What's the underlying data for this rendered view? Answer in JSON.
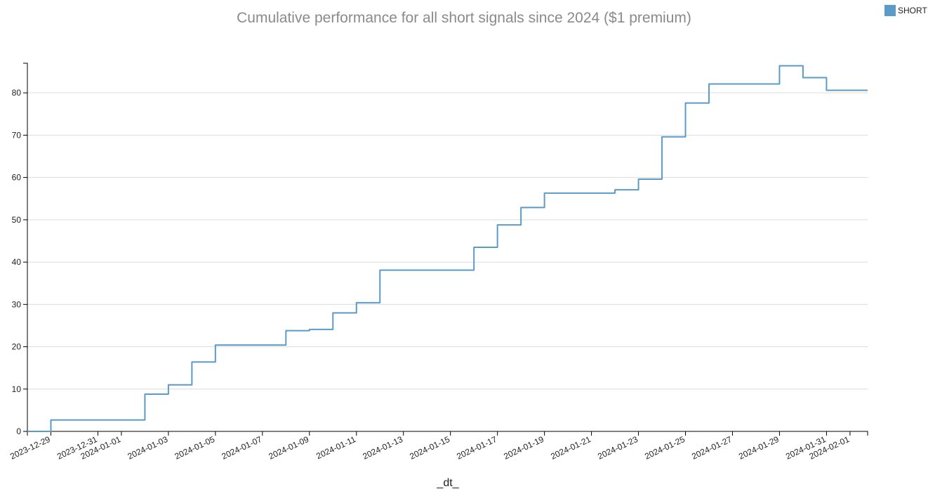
{
  "chart_data": {
    "type": "line",
    "title": "Cumulative performance for all short signals since 2024 ($1 premium)",
    "xlabel": "_dt_",
    "ylabel": "",
    "x_range": [
      "2023-12-28",
      "2024-02-01T18:00"
    ],
    "ylim": [
      0,
      87
    ],
    "y_ticks": [
      0,
      10,
      20,
      30,
      40,
      50,
      60,
      70,
      80
    ],
    "x_ticks": [
      "2023-12-29",
      "2023-12-31",
      "2024-01-01",
      "2024-01-03",
      "2024-01-05",
      "2024-01-07",
      "2024-01-09",
      "2024-01-11",
      "2024-01-13",
      "2024-01-15",
      "2024-01-17",
      "2024-01-19",
      "2024-01-21",
      "2024-01-23",
      "2024-01-25",
      "2024-01-27",
      "2024-01-29",
      "2024-01-31",
      "2024-02-01"
    ],
    "grid": "horizontal",
    "legend_position": "top-right",
    "series": [
      {
        "name": "SHORT",
        "color": "#5b9bc8",
        "shape": "step",
        "points": [
          [
            "2023-12-28T00:00",
            0
          ],
          [
            "2023-12-29T00:00",
            0
          ],
          [
            "2023-12-29T00:00",
            2.7
          ],
          [
            "2024-01-02T00:00",
            2.7
          ],
          [
            "2024-01-02T00:00",
            8.8
          ],
          [
            "2024-01-03T00:00",
            8.8
          ],
          [
            "2024-01-03T00:00",
            11
          ],
          [
            "2024-01-04T00:00",
            11
          ],
          [
            "2024-01-04T00:00",
            16.4
          ],
          [
            "2024-01-05T00:00",
            16.4
          ],
          [
            "2024-01-05T00:00",
            20.4
          ],
          [
            "2024-01-08T00:00",
            20.4
          ],
          [
            "2024-01-08T00:00",
            23.8
          ],
          [
            "2024-01-09T00:00",
            23.8
          ],
          [
            "2024-01-09T00:00",
            24.1
          ],
          [
            "2024-01-10T00:00",
            24.1
          ],
          [
            "2024-01-10T00:00",
            28
          ],
          [
            "2024-01-11T00:00",
            28
          ],
          [
            "2024-01-11T00:00",
            30.4
          ],
          [
            "2024-01-12T00:00",
            30.4
          ],
          [
            "2024-01-12T00:00",
            38.1
          ],
          [
            "2024-01-16T00:00",
            38.1
          ],
          [
            "2024-01-16T00:00",
            43.5
          ],
          [
            "2024-01-17T00:00",
            43.5
          ],
          [
            "2024-01-17T00:00",
            48.8
          ],
          [
            "2024-01-18T00:00",
            48.8
          ],
          [
            "2024-01-18T00:00",
            52.9
          ],
          [
            "2024-01-19T00:00",
            52.9
          ],
          [
            "2024-01-19T00:00",
            56.3
          ],
          [
            "2024-01-22T00:00",
            56.3
          ],
          [
            "2024-01-22T00:00",
            57.1
          ],
          [
            "2024-01-23T00:00",
            57.1
          ],
          [
            "2024-01-23T00:00",
            59.6
          ],
          [
            "2024-01-24T00:00",
            59.6
          ],
          [
            "2024-01-24T00:00",
            69.6
          ],
          [
            "2024-01-25T00:00",
            69.6
          ],
          [
            "2024-01-25T00:00",
            77.6
          ],
          [
            "2024-01-26T00:00",
            77.6
          ],
          [
            "2024-01-26T00:00",
            82.1
          ],
          [
            "2024-01-29T00:00",
            82.1
          ],
          [
            "2024-01-29T00:00",
            86.4
          ],
          [
            "2024-01-30T00:00",
            86.4
          ],
          [
            "2024-01-30T00:00",
            83.6
          ],
          [
            "2024-01-31T00:00",
            83.6
          ],
          [
            "2024-01-31T00:00",
            80.6
          ],
          [
            "2024-02-01T18:00",
            80.6
          ]
        ]
      }
    ]
  }
}
